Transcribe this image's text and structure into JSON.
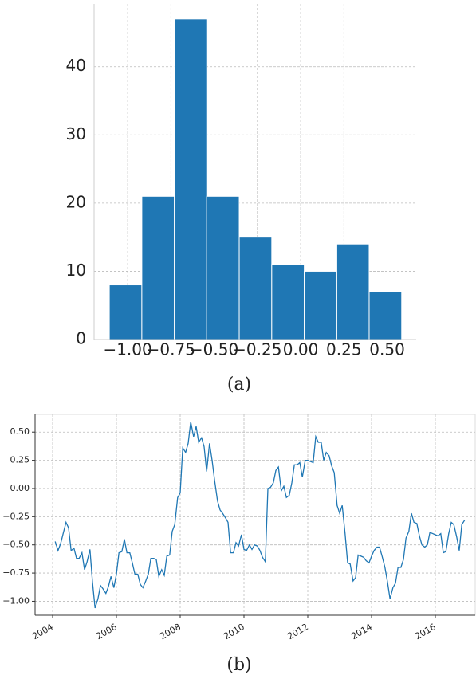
{
  "chart_data": [
    {
      "type": "histogram",
      "caption": "(a)",
      "color": "#1f77b4",
      "bins": [
        -1.106,
        -0.918,
        -0.73,
        -0.543,
        -0.355,
        -0.167,
        0.021,
        0.209,
        0.396,
        0.584
      ],
      "counts": [
        8,
        21,
        47,
        21,
        15,
        11,
        10,
        14,
        7
      ],
      "xlim": [
        -1.194,
        0.668
      ],
      "ylim": [
        0,
        49.2
      ],
      "xticks": [
        {
          "value": -1.0,
          "label": "−1.00"
        },
        {
          "value": -0.75,
          "label": "−0.75"
        },
        {
          "value": -0.5,
          "label": "−0.50"
        },
        {
          "value": -0.25,
          "label": "−0.25"
        },
        {
          "value": 0,
          "label": "0.00"
        },
        {
          "value": 0.25,
          "label": "0.25"
        },
        {
          "value": 0.5,
          "label": "0.50"
        }
      ],
      "yticks": [
        0,
        10,
        20,
        30,
        40
      ],
      "grid": true
    },
    {
      "type": "line",
      "caption": "(b)",
      "color": "#1f77b4",
      "x": [
        2004.08,
        2004.17,
        2004.25,
        2004.33,
        2004.42,
        2004.5,
        2004.58,
        2004.67,
        2004.75,
        2004.83,
        2004.92,
        2005.0,
        2005.08,
        2005.17,
        2005.25,
        2005.33,
        2005.42,
        2005.5,
        2005.58,
        2005.67,
        2005.75,
        2005.83,
        2005.92,
        2006.0,
        2006.08,
        2006.17,
        2006.25,
        2006.33,
        2006.42,
        2006.5,
        2006.58,
        2006.67,
        2006.75,
        2006.83,
        2006.92,
        2007.0,
        2007.08,
        2007.17,
        2007.25,
        2007.33,
        2007.42,
        2007.5,
        2007.58,
        2007.67,
        2007.75,
        2007.83,
        2007.92,
        2008.0,
        2008.08,
        2008.17,
        2008.25,
        2008.33,
        2008.42,
        2008.5,
        2008.58,
        2008.67,
        2008.75,
        2008.83,
        2008.92,
        2009.0,
        2009.08,
        2009.17,
        2009.25,
        2009.33,
        2009.42,
        2009.5,
        2009.58,
        2009.67,
        2009.75,
        2009.83,
        2009.92,
        2010.0,
        2010.08,
        2010.17,
        2010.25,
        2010.33,
        2010.42,
        2010.5,
        2010.58,
        2010.67,
        2010.75,
        2010.83,
        2010.92,
        2011.0,
        2011.08,
        2011.17,
        2011.25,
        2011.33,
        2011.42,
        2011.5,
        2011.58,
        2011.67,
        2011.75,
        2011.83,
        2011.92,
        2012.0,
        2012.08,
        2012.17,
        2012.25,
        2012.33,
        2012.42,
        2012.5,
        2012.58,
        2012.67,
        2012.75,
        2012.83,
        2012.92,
        2013.0,
        2013.08,
        2013.17,
        2013.25,
        2013.33,
        2013.42,
        2013.5,
        2013.58,
        2013.67,
        2013.75,
        2013.83,
        2013.92,
        2014.0,
        2014.08,
        2014.17,
        2014.25,
        2014.33,
        2014.42,
        2014.5,
        2014.58,
        2014.67,
        2014.75,
        2014.83,
        2014.92,
        2015.0,
        2015.08,
        2015.17,
        2015.25,
        2015.33,
        2015.42,
        2015.5,
        2015.58,
        2015.67,
        2015.75,
        2015.83,
        2015.92,
        2016.0,
        2016.08,
        2016.17,
        2016.25,
        2016.33,
        2016.42,
        2016.5,
        2016.58,
        2016.67,
        2016.75,
        2016.83,
        2016.92
      ],
      "values": [
        -0.47,
        -0.55,
        -0.49,
        -0.4,
        -0.3,
        -0.35,
        -0.55,
        -0.53,
        -0.62,
        -0.62,
        -0.57,
        -0.72,
        -0.65,
        -0.54,
        -0.83,
        -1.06,
        -0.98,
        -0.86,
        -0.89,
        -0.93,
        -0.87,
        -0.78,
        -0.88,
        -0.76,
        -0.57,
        -0.56,
        -0.45,
        -0.57,
        -0.57,
        -0.66,
        -0.76,
        -0.76,
        -0.85,
        -0.88,
        -0.82,
        -0.76,
        -0.62,
        -0.62,
        -0.63,
        -0.78,
        -0.72,
        -0.77,
        -0.6,
        -0.59,
        -0.38,
        -0.32,
        -0.08,
        -0.04,
        0.36,
        0.32,
        0.4,
        0.59,
        0.46,
        0.55,
        0.41,
        0.45,
        0.37,
        0.15,
        0.4,
        0.25,
        0.07,
        -0.11,
        -0.19,
        -0.22,
        -0.26,
        -0.3,
        -0.57,
        -0.57,
        -0.48,
        -0.51,
        -0.41,
        -0.54,
        -0.55,
        -0.5,
        -0.54,
        -0.5,
        -0.51,
        -0.55,
        -0.61,
        -0.65,
        0.0,
        0.01,
        0.05,
        0.16,
        0.19,
        -0.02,
        0.02,
        -0.08,
        -0.06,
        0.05,
        0.21,
        0.21,
        0.23,
        0.1,
        0.25,
        0.25,
        0.24,
        0.23,
        0.46,
        0.41,
        0.41,
        0.25,
        0.32,
        0.29,
        0.2,
        0.14,
        -0.15,
        -0.22,
        -0.15,
        -0.4,
        -0.66,
        -0.67,
        -0.82,
        -0.79,
        -0.59,
        -0.6,
        -0.61,
        -0.64,
        -0.66,
        -0.6,
        -0.55,
        -0.52,
        -0.52,
        -0.6,
        -0.7,
        -0.83,
        -0.98,
        -0.88,
        -0.84,
        -0.7,
        -0.7,
        -0.63,
        -0.44,
        -0.38,
        -0.22,
        -0.3,
        -0.31,
        -0.42,
        -0.5,
        -0.52,
        -0.5,
        -0.39,
        -0.4,
        -0.41,
        -0.42,
        -0.4,
        -0.57,
        -0.56,
        -0.4,
        -0.3,
        -0.32,
        -0.43,
        -0.55,
        -0.32,
        -0.28
      ],
      "xlim": [
        2003.45,
        2017.25
      ],
      "ylim": [
        -1.124,
        0.657
      ],
      "xticks": [
        2004,
        2006,
        2008,
        2010,
        2012,
        2014,
        2016
      ],
      "yticks": [
        {
          "value": -1.0,
          "label": "−1.00"
        },
        {
          "value": -0.75,
          "label": "−0.75"
        },
        {
          "value": -0.5,
          "label": "−0.50"
        },
        {
          "value": -0.25,
          "label": "−0.25"
        },
        {
          "value": 0,
          "label": "0.00"
        },
        {
          "value": 0.25,
          "label": "0.25"
        },
        {
          "value": 0.5,
          "label": "0.50"
        }
      ],
      "grid": true
    }
  ]
}
